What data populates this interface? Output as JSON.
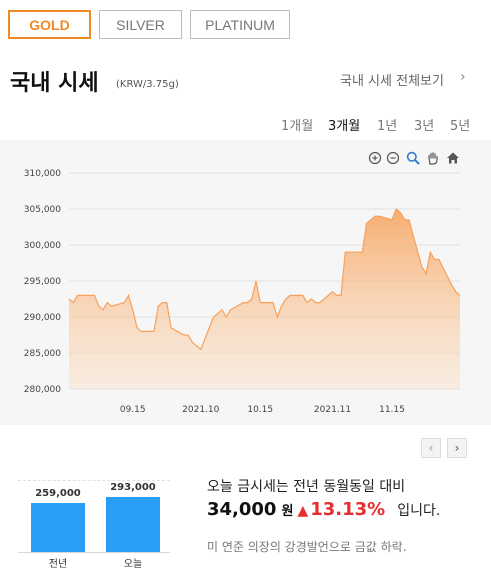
{
  "tabs": [
    {
      "label": "GOLD",
      "active": true
    },
    {
      "label": "SILVER",
      "active": false
    },
    {
      "label": "PLATINUM",
      "active": false
    }
  ],
  "header": {
    "title": "국내 시세",
    "unit": "(KRW/3.75g)",
    "view_all": "국내 시세 전체보기"
  },
  "periods": [
    {
      "label": "1개월",
      "active": false
    },
    {
      "label": "3개월",
      "active": true
    },
    {
      "label": "1년",
      "active": false
    },
    {
      "label": "3년",
      "active": false
    },
    {
      "label": "5년",
      "active": false
    }
  ],
  "chart_tools": [
    "zoom-in-icon",
    "zoom-out-icon",
    "magnify-icon",
    "pan-hand-icon",
    "home-icon"
  ],
  "chart_data": {
    "type": "area",
    "title": "",
    "xlabel": "",
    "ylabel": "",
    "ylim": [
      280000,
      310000
    ],
    "y_ticks": [
      "280,000",
      "285,000",
      "290,000",
      "295,000",
      "300,000",
      "305,000",
      "310,000"
    ],
    "x_ticks": [
      {
        "label": "09.15",
        "x": "2021-09-15"
      },
      {
        "label": "2021.10",
        "x": "2021-10-01"
      },
      {
        "label": "10.15",
        "x": "2021-10-15"
      },
      {
        "label": "2021.11",
        "x": "2021-11-01"
      },
      {
        "label": "11.15",
        "x": "2021-11-15"
      }
    ],
    "xlim": [
      "2021-08-31",
      "2021-12-01"
    ],
    "series": [
      {
        "color": "#f7a15a",
        "points": [
          [
            "2021-08-31",
            292500
          ],
          [
            "2021-09-01",
            292000
          ],
          [
            "2021-09-02",
            293000
          ],
          [
            "2021-09-06",
            293000
          ],
          [
            "2021-09-07",
            291500
          ],
          [
            "2021-09-08",
            291000
          ],
          [
            "2021-09-09",
            292000
          ],
          [
            "2021-09-10",
            291500
          ],
          [
            "2021-09-13",
            292000
          ],
          [
            "2021-09-14",
            293000
          ],
          [
            "2021-09-15",
            291000
          ],
          [
            "2021-09-16",
            288500
          ],
          [
            "2021-09-17",
            288000
          ],
          [
            "2021-09-20",
            288000
          ],
          [
            "2021-09-21",
            291500
          ],
          [
            "2021-09-22",
            292000
          ],
          [
            "2021-09-23",
            292000
          ],
          [
            "2021-09-24",
            288500
          ],
          [
            "2021-09-27",
            287500
          ],
          [
            "2021-09-28",
            287500
          ],
          [
            "2021-09-29",
            286500
          ],
          [
            "2021-09-30",
            286000
          ],
          [
            "2021-10-01",
            285500
          ],
          [
            "2021-10-04",
            290000
          ],
          [
            "2021-10-05",
            290500
          ],
          [
            "2021-10-06",
            291000
          ],
          [
            "2021-10-07",
            290000
          ],
          [
            "2021-10-08",
            291000
          ],
          [
            "2021-10-11",
            292000
          ],
          [
            "2021-10-12",
            292000
          ],
          [
            "2021-10-13",
            292500
          ],
          [
            "2021-10-14",
            295000
          ],
          [
            "2021-10-15",
            292000
          ],
          [
            "2021-10-18",
            292000
          ],
          [
            "2021-10-19",
            290000
          ],
          [
            "2021-10-20",
            291500
          ],
          [
            "2021-10-21",
            292500
          ],
          [
            "2021-10-22",
            293000
          ],
          [
            "2021-10-25",
            293000
          ],
          [
            "2021-10-26",
            292000
          ],
          [
            "2021-10-27",
            292500
          ],
          [
            "2021-10-28",
            292000
          ],
          [
            "2021-10-29",
            292000
          ],
          [
            "2021-11-01",
            293500
          ],
          [
            "2021-11-02",
            293000
          ],
          [
            "2021-11-03",
            293000
          ],
          [
            "2021-11-04",
            299000
          ],
          [
            "2021-11-05",
            299000
          ],
          [
            "2021-11-08",
            299000
          ],
          [
            "2021-11-09",
            303000
          ],
          [
            "2021-11-10",
            303500
          ],
          [
            "2021-11-11",
            304000
          ],
          [
            "2021-11-12",
            304000
          ],
          [
            "2021-11-15",
            303500
          ],
          [
            "2021-11-16",
            305000
          ],
          [
            "2021-11-17",
            304500
          ],
          [
            "2021-11-18",
            303500
          ],
          [
            "2021-11-19",
            303500
          ],
          [
            "2021-11-22",
            297000
          ],
          [
            "2021-11-23",
            296000
          ],
          [
            "2021-11-24",
            299000
          ],
          [
            "2021-11-25",
            298000
          ],
          [
            "2021-11-26",
            298000
          ],
          [
            "2021-11-29",
            294500
          ],
          [
            "2021-11-30",
            293500
          ],
          [
            "2021-12-01",
            293000
          ]
        ]
      }
    ]
  },
  "comparison_chart": {
    "type": "bar",
    "categories": [
      "전년",
      "오늘"
    ],
    "values": [
      259000,
      293000
    ],
    "value_labels": [
      "259,000",
      "293,000"
    ],
    "color": "#2a9df4"
  },
  "summary": {
    "line1": "오늘 금시세는 전년 동월동일 대비",
    "amount": "34,000",
    "won": "원",
    "direction_arrow": "▲",
    "percent": "13.13%",
    "tail": "입니다.",
    "up_color": "#e62e2e"
  },
  "note": "미 연준 의장의 강경발언으로 금값 하락."
}
